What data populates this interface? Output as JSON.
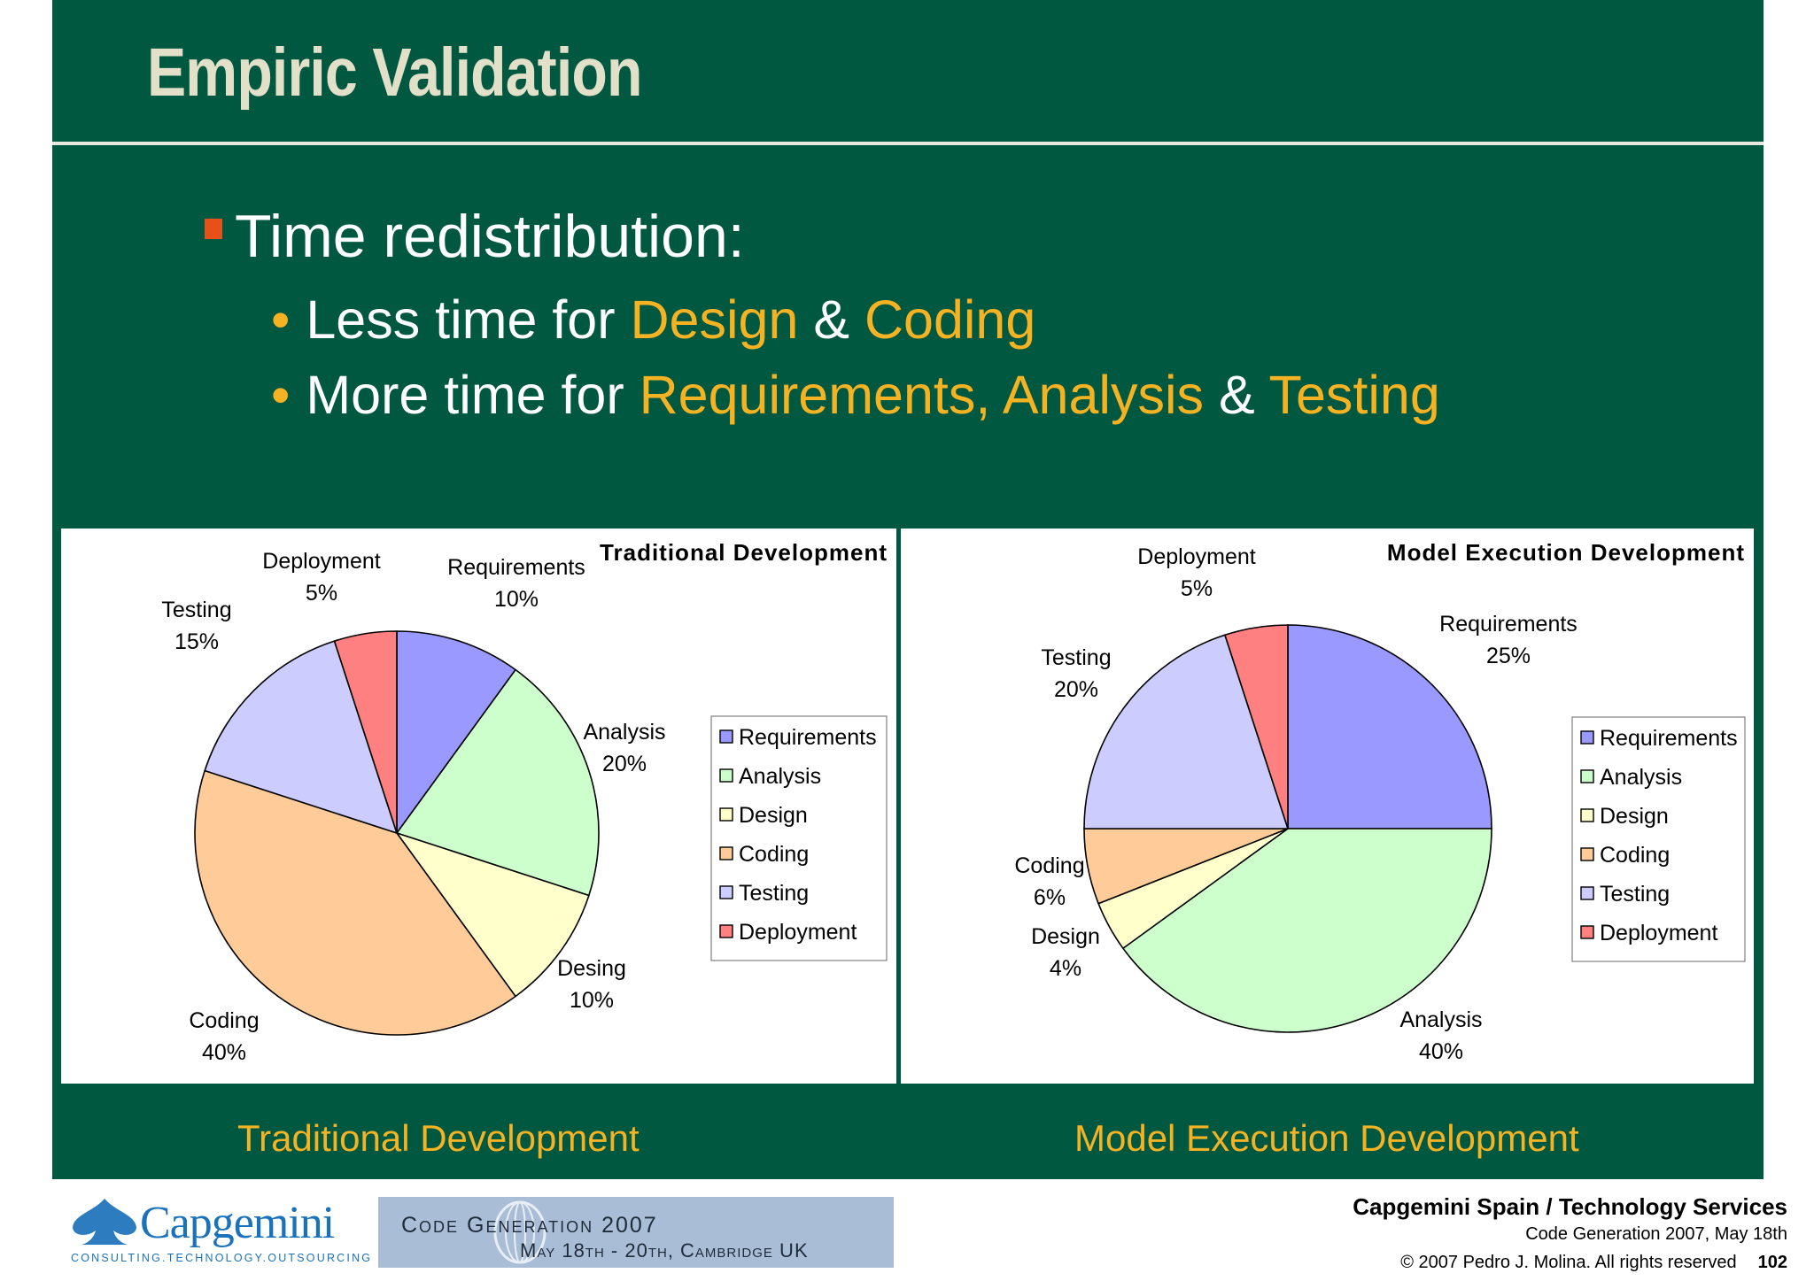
{
  "slide": {
    "title": "Empiric Validation",
    "main_bullet": "Time redistribution:",
    "sub1": {
      "prefix": "Less time for ",
      "hl1": "Design",
      "mid": " & ",
      "hl2": "Coding"
    },
    "sub2": {
      "prefix": "More time for ",
      "hl1": "Requirements, Analysis",
      "mid": " & ",
      "hl2": "Testing"
    },
    "bullet_dot": "•",
    "caption_left": "Traditional Development",
    "caption_right": "Model Execution Development"
  },
  "footer": {
    "company_line": "Capgemini Spain / Technology Services",
    "event_line": "Code Generation 2007, May 18th",
    "copyright": "© 2007 Pedro J. Molina. All rights reserved",
    "page_number": "102",
    "logo_text": "Capgemini",
    "logo_tagline": "CONSULTING.TECHNOLOGY.OUTSOURCING",
    "banner_title": "Code   Generation 2007",
    "banner_dates": "May 18th - 20th, Cambridge UK"
  },
  "chart_data": [
    {
      "type": "pie",
      "title": "Traditional Development",
      "start_angle_deg": 0,
      "direction": "clockwise",
      "legend_position": "right",
      "slices": [
        {
          "name": "Requirements",
          "label": "Requirements",
          "value": 10,
          "pct": "10%",
          "color": "#9999ff"
        },
        {
          "name": "Analysis",
          "label": "Analysis",
          "value": 20,
          "pct": "20%",
          "color": "#ccffcc"
        },
        {
          "name": "Design",
          "label": "Desing",
          "value": 10,
          "pct": "10%",
          "color": "#ffffcc"
        },
        {
          "name": "Coding",
          "label": "Coding",
          "value": 40,
          "pct": "40%",
          "color": "#ffcc99"
        },
        {
          "name": "Testing",
          "label": "Testing",
          "value": 15,
          "pct": "15%",
          "color": "#ccccff"
        },
        {
          "name": "Deployment",
          "label": "Deployment",
          "value": 5,
          "pct": "5%",
          "color": "#ff8080"
        }
      ]
    },
    {
      "type": "pie",
      "title": "Model Execution Development",
      "start_angle_deg": 0,
      "direction": "clockwise",
      "legend_position": "right",
      "slices": [
        {
          "name": "Requirements",
          "label": "Requirements",
          "value": 25,
          "pct": "25%",
          "color": "#9999ff"
        },
        {
          "name": "Analysis",
          "label": "Analysis",
          "value": 40,
          "pct": "40%",
          "color": "#ccffcc"
        },
        {
          "name": "Design",
          "label": "Design",
          "value": 4,
          "pct": "4%",
          "color": "#ffffcc"
        },
        {
          "name": "Coding",
          "label": "Coding",
          "value": 6,
          "pct": "6%",
          "color": "#ffcc99"
        },
        {
          "name": "Testing",
          "label": "Testing",
          "value": 20,
          "pct": "20%",
          "color": "#ccccff"
        },
        {
          "name": "Deployment",
          "label": "Deployment",
          "value": 5,
          "pct": "5%",
          "color": "#ff8080"
        }
      ]
    }
  ]
}
